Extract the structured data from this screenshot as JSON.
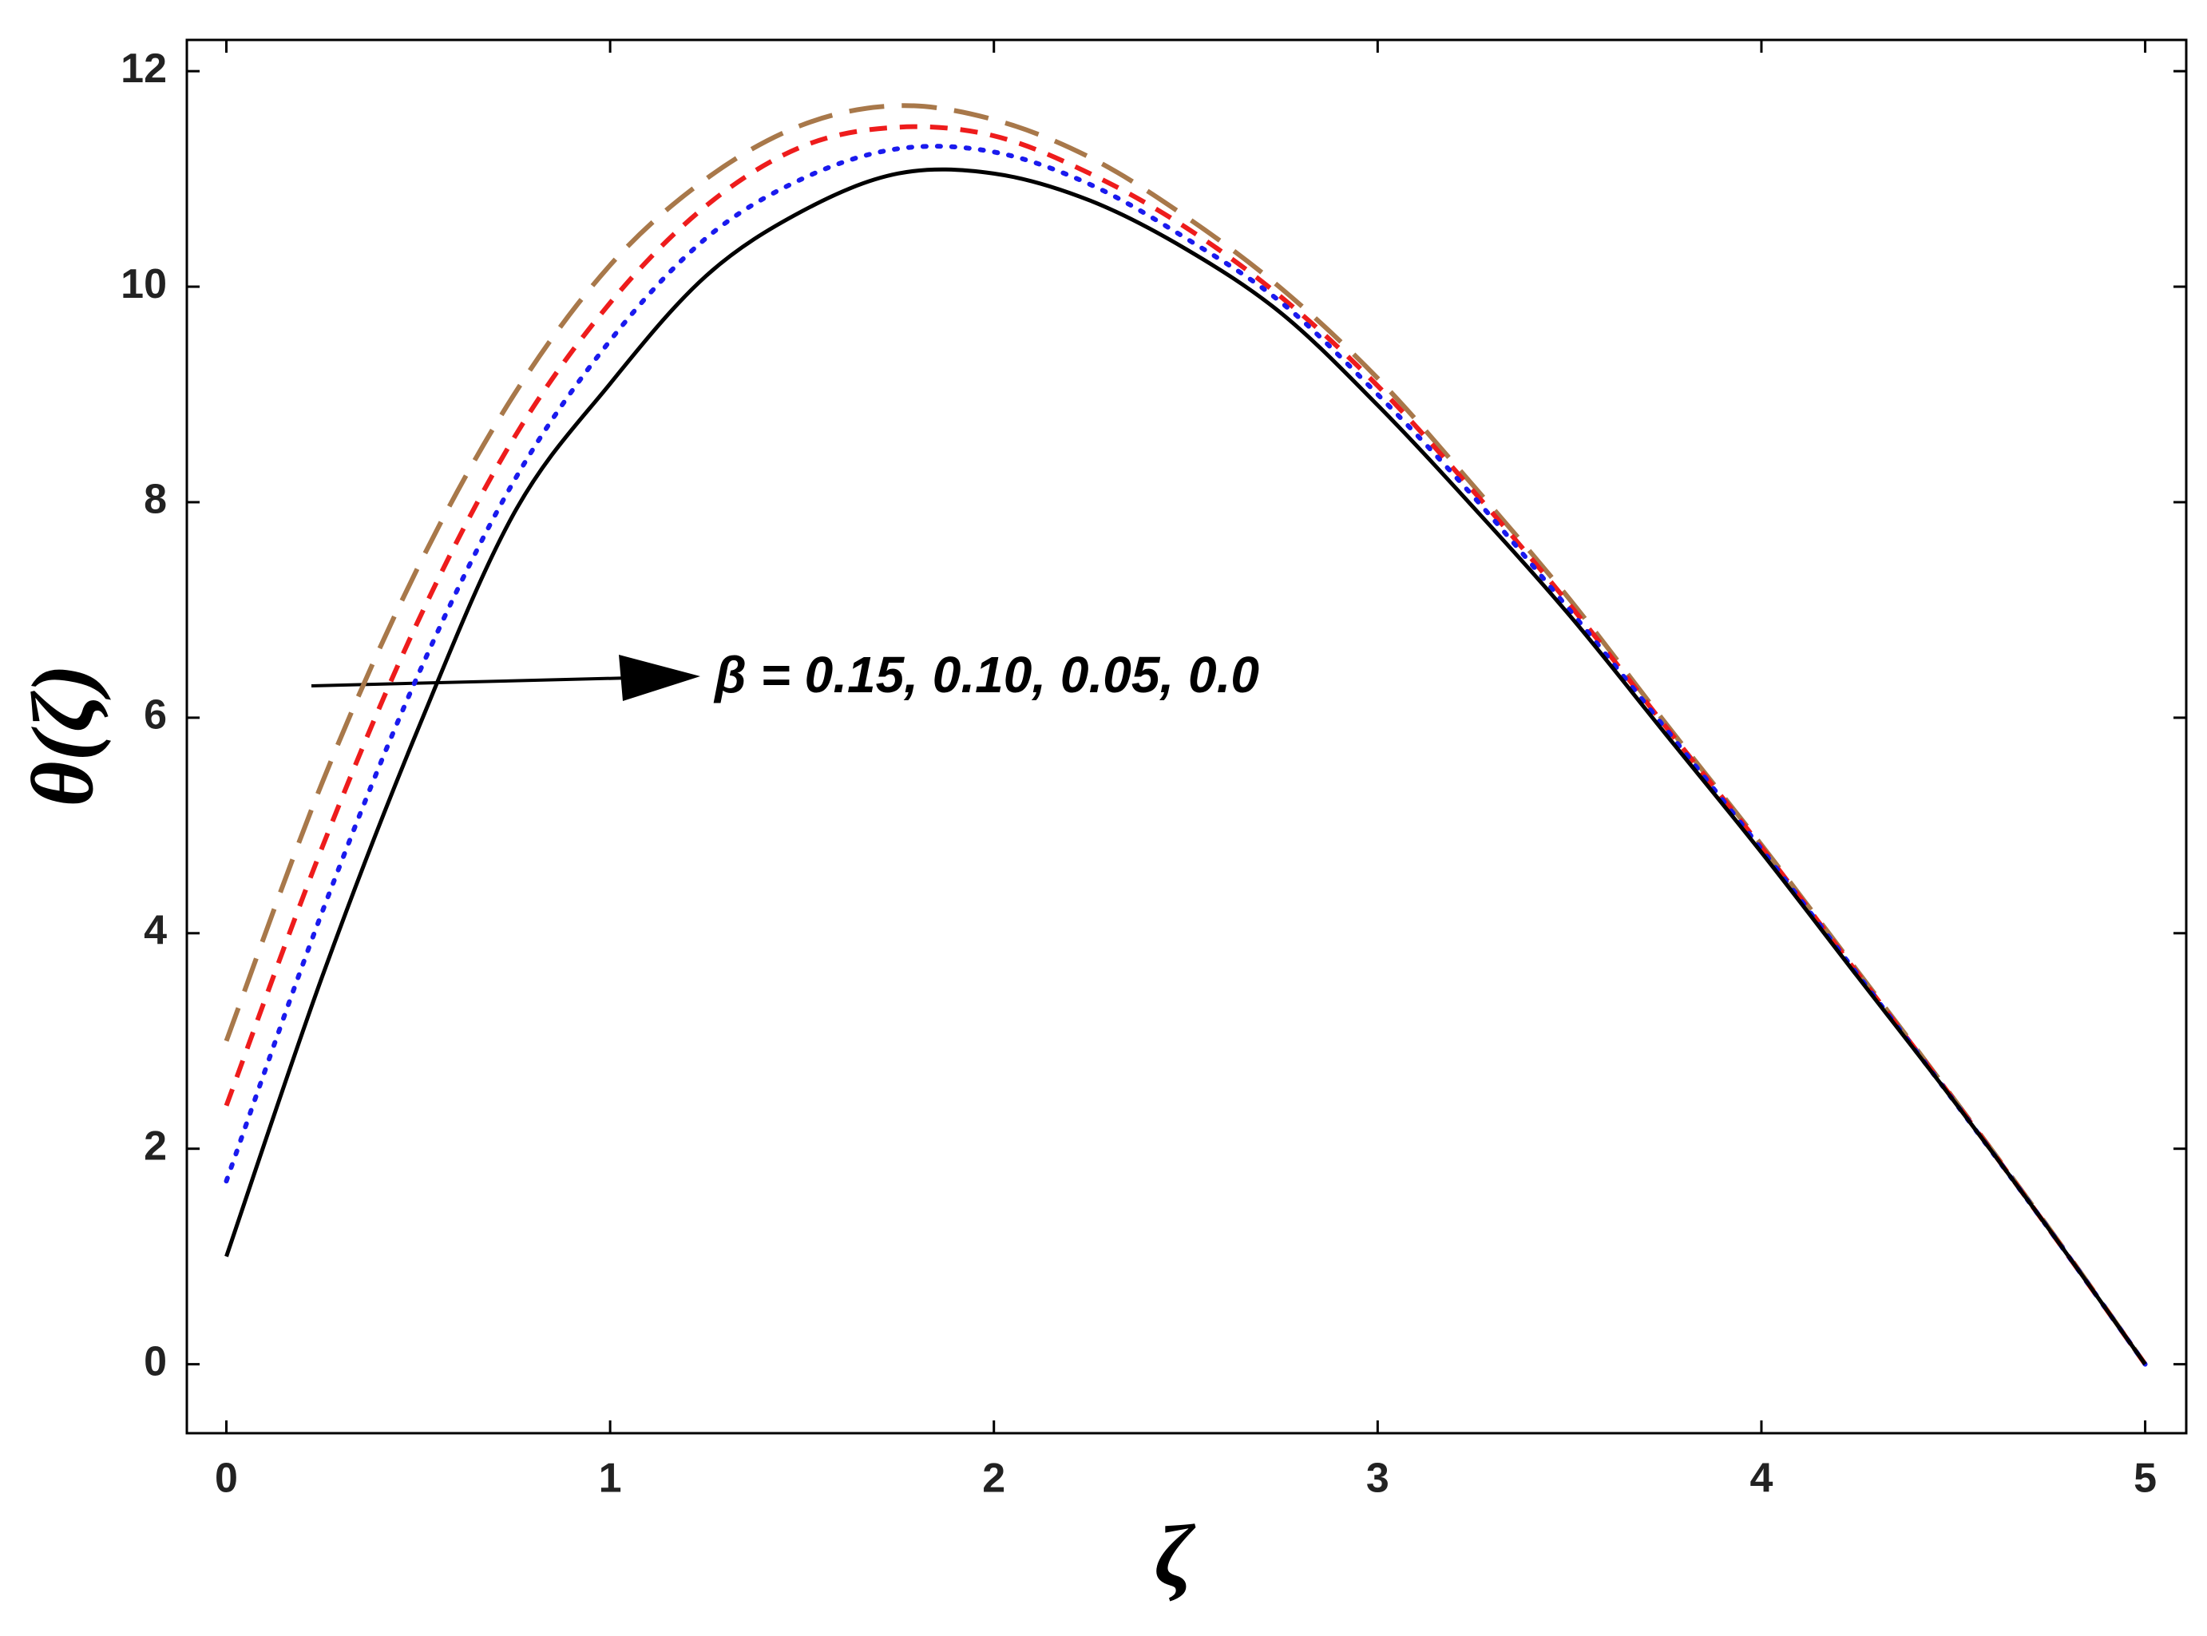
{
  "chart_data": {
    "type": "line",
    "xlabel": "ζ",
    "ylabel": "θ(ζ)",
    "annotation": "β = 0.15, 0.10, 0.05, 0.0",
    "x": [
      0,
      0.25,
      0.5,
      0.75,
      1,
      1.25,
      1.5,
      1.75,
      2,
      2.25,
      2.5,
      2.75,
      3,
      3.25,
      3.5,
      3.75,
      4,
      4.25,
      4.5,
      4.75,
      5
    ],
    "series": [
      {
        "color": "#a8784a",
        "style": "long-dash",
        "values": [
          3.0,
          5.4,
          7.4,
          9.0,
          10.2,
          11.0,
          11.5,
          11.68,
          11.55,
          11.2,
          10.65,
          9.98,
          9.15,
          8.15,
          7.1,
          5.95,
          4.82,
          3.65,
          2.47,
          1.26,
          0
        ]
      },
      {
        "color": "#ee1c1c",
        "style": "dash",
        "values": [
          2.4,
          4.8,
          6.9,
          8.6,
          9.85,
          10.75,
          11.3,
          11.48,
          11.4,
          11.05,
          10.55,
          9.9,
          9.08,
          8.1,
          7.05,
          5.92,
          4.8,
          3.63,
          2.46,
          1.25,
          0
        ]
      },
      {
        "color": "#1a1aee",
        "style": "dot",
        "values": [
          1.7,
          4.2,
          6.4,
          8.2,
          9.5,
          10.45,
          11.0,
          11.28,
          11.25,
          10.95,
          10.45,
          9.85,
          9.0,
          8.05,
          7.0,
          5.9,
          4.78,
          3.62,
          2.45,
          1.25,
          0
        ]
      },
      {
        "color": "#000000",
        "style": "solid",
        "values": [
          1.0,
          3.6,
          5.9,
          7.9,
          9.1,
          10.1,
          10.7,
          11.05,
          11.05,
          10.8,
          10.35,
          9.75,
          8.9,
          7.95,
          6.95,
          5.85,
          4.75,
          3.6,
          2.45,
          1.25,
          0
        ]
      }
    ],
    "xlim": [
      -0.103,
      5.107
    ],
    "ylim": [
      -0.64,
      12.29
    ],
    "xticks": [
      0,
      1,
      2,
      3,
      4,
      5
    ],
    "yticks": [
      0,
      2,
      4,
      6,
      8,
      10,
      12
    ]
  }
}
